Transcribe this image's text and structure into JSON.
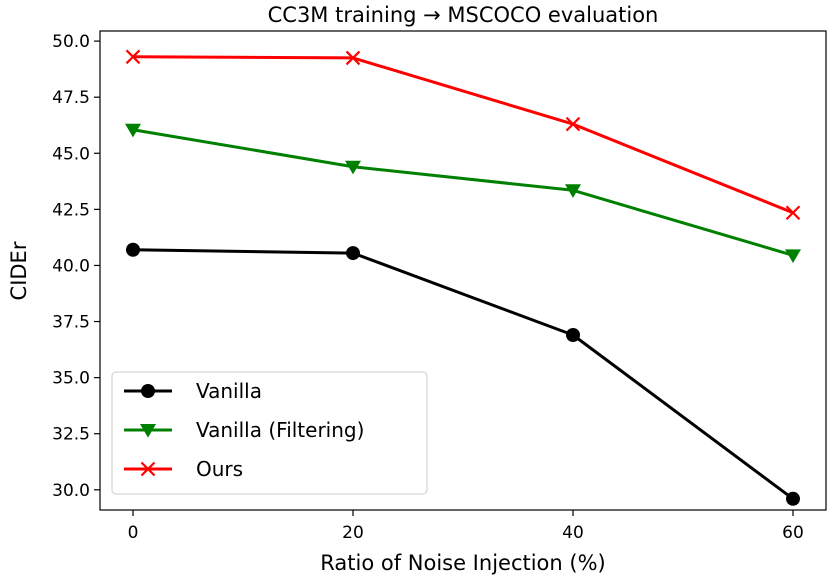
{
  "chart_data": {
    "type": "line",
    "title": "CC3M training → MSCOCO evaluation",
    "xlabel": "Ratio of Noise Injection (%)",
    "ylabel": "CIDEr",
    "x": [
      0,
      20,
      40,
      60
    ],
    "xticks": [
      "0",
      "20",
      "40",
      "60"
    ],
    "xlim": [
      -3,
      63
    ],
    "yticks": [
      "30.0",
      "32.5",
      "35.0",
      "37.5",
      "40.0",
      "42.5",
      "45.0",
      "47.5",
      "50.0"
    ],
    "ylim": [
      29.1,
      50.45
    ],
    "grid": false,
    "legend_position": "bottom-left",
    "series": [
      {
        "name": "Vanilla",
        "color": "#000000",
        "marker": "circle",
        "values": [
          40.7,
          40.55,
          36.9,
          29.6
        ]
      },
      {
        "name": "Vanilla (Filtering)",
        "color": "#008000",
        "marker": "triangle-down",
        "values": [
          46.05,
          44.4,
          43.35,
          40.45
        ]
      },
      {
        "name": "Ours",
        "color": "#ff0000",
        "marker": "x",
        "values": [
          49.3,
          49.25,
          46.3,
          42.35
        ]
      }
    ]
  }
}
